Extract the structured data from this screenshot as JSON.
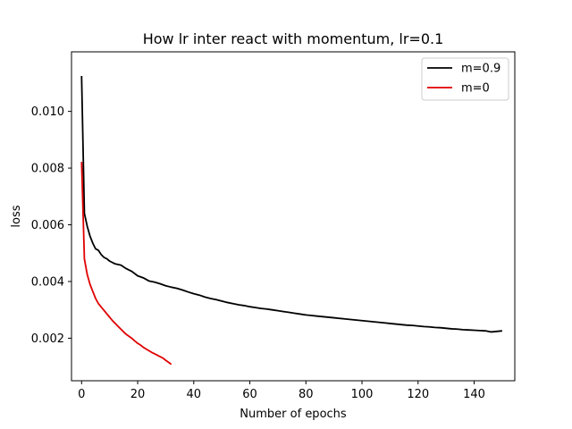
{
  "chart_data": {
    "type": "line",
    "title": "How lr inter react with momentum, lr=0.1",
    "xlabel": "Number of epochs",
    "ylabel": "loss",
    "xlim": [
      -3.6,
      154.5
    ],
    "ylim": [
      0.0005,
      0.0121
    ],
    "xticks": [
      0,
      20,
      40,
      60,
      80,
      100,
      120,
      140
    ],
    "yticks": [
      0.002,
      0.004,
      0.006,
      0.008,
      0.01
    ],
    "ytick_labels": [
      "0.002",
      "0.004",
      "0.006",
      "0.008",
      "0.010"
    ],
    "grid": false,
    "legend_position": "top-right",
    "series": [
      {
        "name": "m=0.9",
        "color": "#000000",
        "points": [
          [
            0,
            0.01125
          ],
          [
            1,
            0.0064
          ],
          [
            2,
            0.00595
          ],
          [
            3,
            0.0056
          ],
          [
            4,
            0.00535
          ],
          [
            5,
            0.00515
          ],
          [
            6,
            0.0051
          ],
          [
            7,
            0.00495
          ],
          [
            8,
            0.00485
          ],
          [
            9,
            0.0048
          ],
          [
            10,
            0.00472
          ],
          [
            12,
            0.00462
          ],
          [
            14,
            0.00458
          ],
          [
            16,
            0.00445
          ],
          [
            18,
            0.00435
          ],
          [
            20,
            0.0042
          ],
          [
            22,
            0.00413
          ],
          [
            24,
            0.00402
          ],
          [
            26,
            0.00398
          ],
          [
            28,
            0.00392
          ],
          [
            30,
            0.00385
          ],
          [
            32,
            0.0038
          ],
          [
            34,
            0.00376
          ],
          [
            36,
            0.0037
          ],
          [
            38,
            0.00363
          ],
          [
            40,
            0.00357
          ],
          [
            42,
            0.00352
          ],
          [
            44,
            0.00345
          ],
          [
            46,
            0.0034
          ],
          [
            48,
            0.00336
          ],
          [
            50,
            0.00331
          ],
          [
            52,
            0.00326
          ],
          [
            54,
            0.00322
          ],
          [
            56,
            0.00318
          ],
          [
            58,
            0.00315
          ],
          [
            60,
            0.00311
          ],
          [
            62,
            0.00308
          ],
          [
            64,
            0.00305
          ],
          [
            66,
            0.00303
          ],
          [
            68,
            0.003
          ],
          [
            70,
            0.00297
          ],
          [
            72,
            0.00294
          ],
          [
            74,
            0.00291
          ],
          [
            76,
            0.00288
          ],
          [
            78,
            0.00285
          ],
          [
            80,
            0.00282
          ],
          [
            82,
            0.0028
          ],
          [
            84,
            0.00278
          ],
          [
            86,
            0.00276
          ],
          [
            88,
            0.00274
          ],
          [
            90,
            0.00272
          ],
          [
            92,
            0.0027
          ],
          [
            94,
            0.00268
          ],
          [
            96,
            0.00266
          ],
          [
            98,
            0.00264
          ],
          [
            100,
            0.00262
          ],
          [
            102,
            0.0026
          ],
          [
            104,
            0.00258
          ],
          [
            106,
            0.00256
          ],
          [
            108,
            0.00254
          ],
          [
            110,
            0.00252
          ],
          [
            112,
            0.0025
          ],
          [
            114,
            0.00248
          ],
          [
            116,
            0.00246
          ],
          [
            118,
            0.00245
          ],
          [
            120,
            0.00243
          ],
          [
            122,
            0.00241
          ],
          [
            124,
            0.0024
          ],
          [
            126,
            0.00238
          ],
          [
            128,
            0.00237
          ],
          [
            130,
            0.00235
          ],
          [
            132,
            0.00233
          ],
          [
            134,
            0.00232
          ],
          [
            136,
            0.0023
          ],
          [
            138,
            0.00229
          ],
          [
            140,
            0.00228
          ],
          [
            142,
            0.00227
          ],
          [
            144,
            0.00226
          ],
          [
            146,
            0.00222
          ],
          [
            148,
            0.00224
          ],
          [
            150,
            0.00226
          ]
        ]
      },
      {
        "name": "m=0",
        "color": "#e00000",
        "points": [
          [
            0,
            0.00822
          ],
          [
            1,
            0.0048
          ],
          [
            2,
            0.00425
          ],
          [
            3,
            0.0039
          ],
          [
            4,
            0.00365
          ],
          [
            5,
            0.0034
          ],
          [
            6,
            0.00322
          ],
          [
            7,
            0.0031
          ],
          [
            8,
            0.00298
          ],
          [
            9,
            0.00286
          ],
          [
            10,
            0.00274
          ],
          [
            11,
            0.00262
          ],
          [
            12,
            0.00252
          ],
          [
            13,
            0.00242
          ],
          [
            14,
            0.00232
          ],
          [
            15,
            0.00222
          ],
          [
            16,
            0.00213
          ],
          [
            17,
            0.00206
          ],
          [
            18,
            0.00199
          ],
          [
            19,
            0.0019
          ],
          [
            20,
            0.00182
          ],
          [
            21,
            0.00176
          ],
          [
            22,
            0.00168
          ],
          [
            23,
            0.00162
          ],
          [
            24,
            0.00156
          ],
          [
            25,
            0.0015
          ],
          [
            26,
            0.00145
          ],
          [
            27,
            0.0014
          ],
          [
            28,
            0.00135
          ],
          [
            29,
            0.0013
          ],
          [
            30,
            0.00122
          ],
          [
            31,
            0.00115
          ],
          [
            32,
            0.00108
          ]
        ]
      }
    ]
  }
}
